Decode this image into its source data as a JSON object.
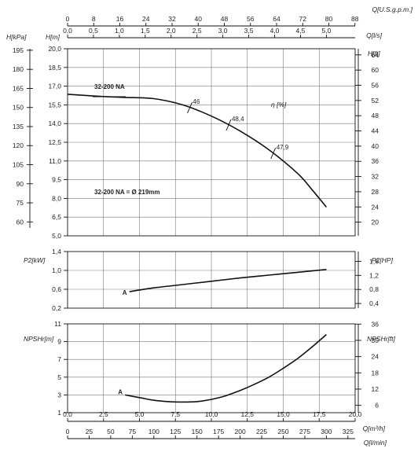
{
  "chart_data": [
    {
      "id": "head",
      "type": "line",
      "xlim": [
        0,
        20
      ],
      "ylim": [
        5,
        20
      ],
      "y_unit_label": "H[m]",
      "y_ticks": [
        "5,0",
        "6,5",
        "8,0",
        "9,5",
        "11,0",
        "12,5",
        "14,0",
        "15,5",
        "17,0",
        "18,5",
        "20,0"
      ],
      "y2_unit_label": "H[kPa]",
      "y2_ticks": [
        "60",
        "75",
        "90",
        "105",
        "120",
        "135",
        "150",
        "165",
        "180",
        "195"
      ],
      "y3_unit_label": "H[ft]",
      "y3_ticks": [
        "20",
        "24",
        "28",
        "32",
        "36",
        "40",
        "44",
        "48",
        "52",
        "56",
        "60",
        "64"
      ],
      "series": [
        {
          "name": "32-200 NA",
          "x": [
            0,
            2,
            4,
            6,
            8,
            10,
            12,
            14,
            16,
            17,
            18
          ],
          "y": [
            16.35,
            16.2,
            16.1,
            16.0,
            15.5,
            14.6,
            13.4,
            11.9,
            10.0,
            8.7,
            7.3
          ]
        }
      ],
      "efficiency_label": "η [%]",
      "efficiency_marks": [
        {
          "label": "46",
          "x": 8.5
        },
        {
          "label": "48,4",
          "x": 11.2
        },
        {
          "label": "47,9",
          "x": 14.3
        }
      ],
      "annotation": "32-200 NA = Ø 219mm",
      "curve_tag": "32-200 NA"
    },
    {
      "id": "power",
      "type": "line",
      "xlim": [
        0,
        20
      ],
      "ylim": [
        0.2,
        1.4
      ],
      "y_unit_label": "P2[kW]",
      "y_ticks": [
        "0,2",
        "0,6",
        "1,0",
        "1,4"
      ],
      "y2_unit_label": "P2[HP]",
      "y2_ticks": [
        "0,4",
        "0,8",
        "1,2",
        "1,6"
      ],
      "series": [
        {
          "name": "A",
          "x": [
            4.3,
            6,
            8,
            10,
            12,
            14,
            16,
            18
          ],
          "y": [
            0.55,
            0.63,
            0.7,
            0.77,
            0.84,
            0.9,
            0.96,
            1.02
          ]
        }
      ]
    },
    {
      "id": "npsh",
      "type": "line",
      "xlim": [
        0,
        20
      ],
      "ylim": [
        1,
        11
      ],
      "y_unit_label": "NPSHr[m]",
      "y_ticks": [
        "1",
        "3",
        "5",
        "7",
        "9",
        "11"
      ],
      "y2_unit_label": "NPSHr[ft]",
      "y2_ticks": [
        "6",
        "12",
        "18",
        "24",
        "30",
        "36"
      ],
      "series": [
        {
          "name": "A",
          "x": [
            4.0,
            5,
            6,
            7,
            8,
            9,
            10,
            11,
            12,
            13,
            14,
            15,
            16,
            17,
            18
          ],
          "y": [
            3.0,
            2.7,
            2.4,
            2.25,
            2.2,
            2.25,
            2.5,
            2.9,
            3.5,
            4.2,
            5.0,
            6.0,
            7.1,
            8.4,
            9.8
          ]
        }
      ]
    }
  ],
  "axes": {
    "top_flow_usgpm": {
      "label": "Q[U.S.g.p.m.]",
      "ticks": [
        "0",
        "8",
        "16",
        "24",
        "32",
        "40",
        "48",
        "56",
        "64",
        "72",
        "80",
        "88"
      ]
    },
    "top_flow_ls": {
      "label": "Q[l/s]",
      "ticks": [
        "0,0",
        "0,5",
        "1,0",
        "1,5",
        "2,0",
        "2,5",
        "3,0",
        "3,5",
        "4,0",
        "4,5",
        "5,0"
      ]
    },
    "bottom_flow_m3h": {
      "label": "Q[m³/h]",
      "ticks": [
        "0,0",
        "2,5",
        "5,0",
        "7,5",
        "10,0",
        "12,5",
        "15,0",
        "17,5",
        "20,0"
      ]
    },
    "bottom_flow_lmin": {
      "label": "Q[l/min]",
      "ticks": [
        "0",
        "25",
        "50",
        "75",
        "100",
        "125",
        "150",
        "175",
        "200",
        "225",
        "250",
        "275",
        "300",
        "325"
      ]
    }
  }
}
